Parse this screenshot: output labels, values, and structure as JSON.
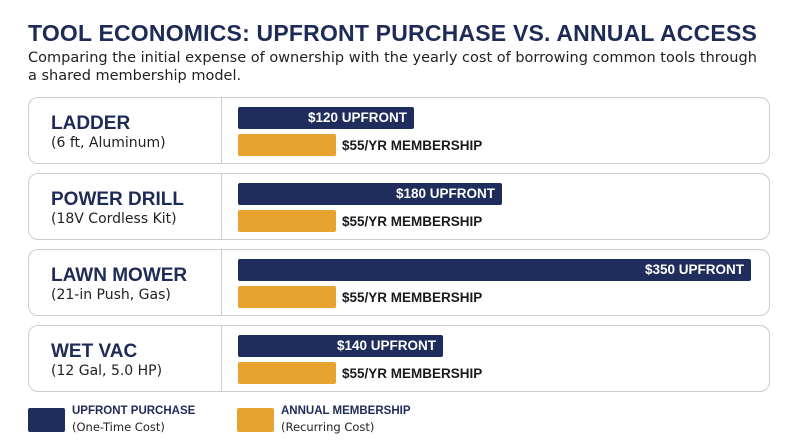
{
  "header": {
    "title": "TOOL ECONOMICS: UPFRONT PURCHASE VS. ANNUAL ACCESS",
    "subtitle": "Comparing the initial expense of ownership with the yearly cost of borrowing common tools through a shared membership model."
  },
  "colors": {
    "upfront": "#1f2d5c",
    "membership": "#e8a32e"
  },
  "chart_data": {
    "type": "bar",
    "orientation": "horizontal",
    "title": "TOOL ECONOMICS: UPFRONT PURCHASE VS. ANNUAL ACCESS",
    "categories": [
      "LADDER",
      "POWER DRILL",
      "LAWN MOWER",
      "WET VAC"
    ],
    "category_specs": [
      "(6 ft, Aluminum)",
      "(18V Cordless Kit)",
      "(21-in Push, Gas)",
      "(12 Gal, 5.0 HP)"
    ],
    "series": [
      {
        "name": "UPFRONT PURCHASE",
        "values": [
          120,
          180,
          350,
          140
        ],
        "labels": [
          "$120 UPFRONT",
          "$180 UPFRONT",
          "$350 UPFRONT",
          "$140 UPFRONT"
        ]
      },
      {
        "name": "ANNUAL MEMBERSHIP",
        "values": [
          55,
          55,
          55,
          55
        ],
        "labels": [
          "$55/YR MEMBERSHIP",
          "$55/YR MEMBERSHIP",
          "$55/YR MEMBERSHIP",
          "$55/YR MEMBERSHIP"
        ]
      }
    ],
    "xlim": [
      0,
      350
    ],
    "grid": false,
    "legend": {
      "placement": "bottom-left",
      "items": [
        {
          "title": "UPFRONT PURCHASE",
          "sub": "(One-Time Cost)"
        },
        {
          "title": "ANNUAL MEMBERSHIP",
          "sub": "(Recurring Cost)"
        }
      ]
    }
  }
}
